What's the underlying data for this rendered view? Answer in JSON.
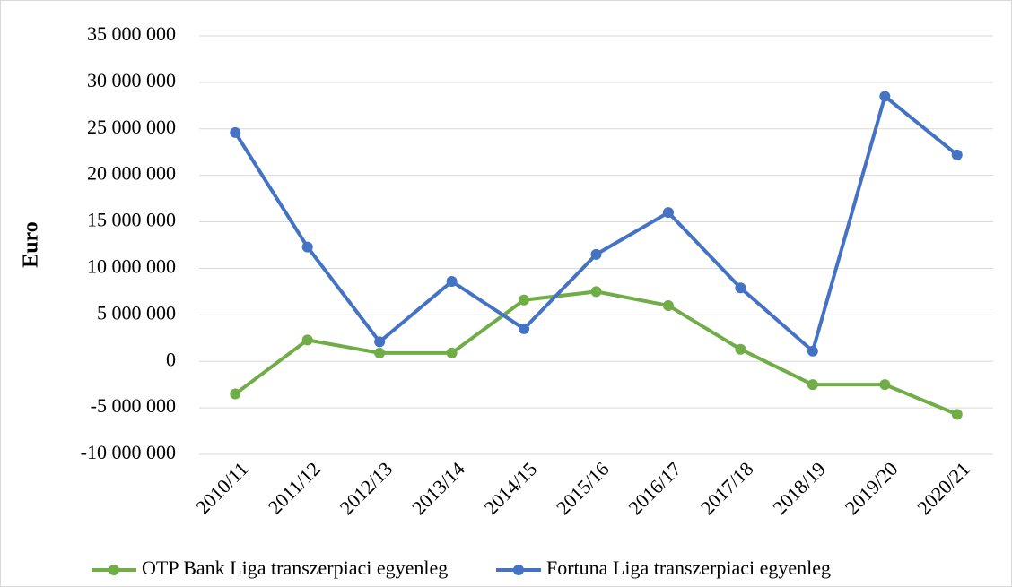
{
  "chart_data": {
    "type": "line",
    "y_label": "Euro",
    "categories": [
      "2010/11",
      "2011/12",
      "2012/13",
      "2013/14",
      "2014/15",
      "2015/16",
      "2016/17",
      "2017/18",
      "2018/19",
      "2019/20",
      "2020/21"
    ],
    "series": [
      {
        "name": "OTP Bank Liga transzerpiaci egyenleg",
        "color": "#70ad47",
        "values": [
          -3500000,
          2300000,
          900000,
          900000,
          6600000,
          7500000,
          6000000,
          1300000,
          -2500000,
          -2500000,
          -5700000
        ]
      },
      {
        "name": "Fortuna Liga transzerpiaci egyenleg",
        "color": "#4472c4",
        "values": [
          24600000,
          12300000,
          2100000,
          8600000,
          3500000,
          11500000,
          16000000,
          7900000,
          1100000,
          28500000,
          22200000
        ]
      }
    ],
    "ylim": [
      -10000000,
      35000000
    ],
    "yticks": [
      {
        "value": -10000000,
        "label": "-10 000 000"
      },
      {
        "value": -5000000,
        "label": "-5 000 000"
      },
      0,
      {
        "value": 5000000,
        "label": "5 000 000"
      },
      {
        "value": 10000000,
        "label": "10 000 000"
      },
      {
        "value": 15000000,
        "label": "15 000 000"
      },
      {
        "value": 20000000,
        "label": "20 000 000"
      },
      {
        "value": 25000000,
        "label": "25 000 000"
      },
      {
        "value": 30000000,
        "label": "30 000 000"
      },
      {
        "value": 35000000,
        "label": "35 000 000"
      }
    ],
    "grid": true,
    "legend": "bottom"
  }
}
